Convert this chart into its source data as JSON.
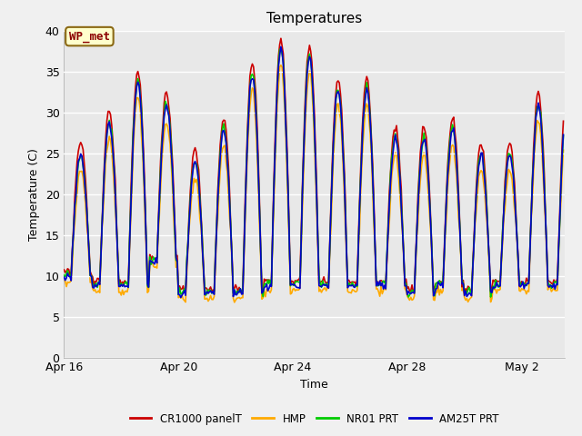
{
  "title": "Temperatures",
  "xlabel": "Time",
  "ylabel": "Temperature (C)",
  "ylim": [
    0,
    40
  ],
  "yticks": [
    0,
    5,
    10,
    15,
    20,
    25,
    30,
    35,
    40
  ],
  "fig_bg_color": "#f0f0f0",
  "plot_bg_color": "#e8e8e8",
  "grid_color": "white",
  "series": {
    "CR1000 panelT": {
      "color": "#cc0000",
      "lw": 1.2,
      "zorder": 3
    },
    "HMP": {
      "color": "#ffaa00",
      "lw": 1.2,
      "zorder": 2
    },
    "NR01 PRT": {
      "color": "#00cc00",
      "lw": 1.2,
      "zorder": 4
    },
    "AM25T PRT": {
      "color": "#0000cc",
      "lw": 1.2,
      "zorder": 5
    }
  },
  "annotation_text": "WP_met",
  "xtick_labels": [
    "Apr 16",
    "Apr 20",
    "Apr 24",
    "Apr 28",
    "May 2"
  ],
  "xtick_positions": [
    0,
    4,
    8,
    12,
    16
  ],
  "n_days": 17.5,
  "peak_heights": [
    25,
    29,
    34,
    31,
    24,
    28,
    35,
    38,
    37,
    33,
    33,
    27,
    27,
    28,
    25,
    25,
    31,
    31
  ],
  "min_heights": [
    10,
    9,
    9,
    12,
    8,
    8,
    8,
    9,
    9,
    9,
    9,
    9,
    8,
    9,
    8,
    9,
    9,
    9
  ],
  "title_fontsize": 11,
  "axis_fontsize": 9,
  "tick_fontsize": 9,
  "legend_fontsize": 8.5
}
